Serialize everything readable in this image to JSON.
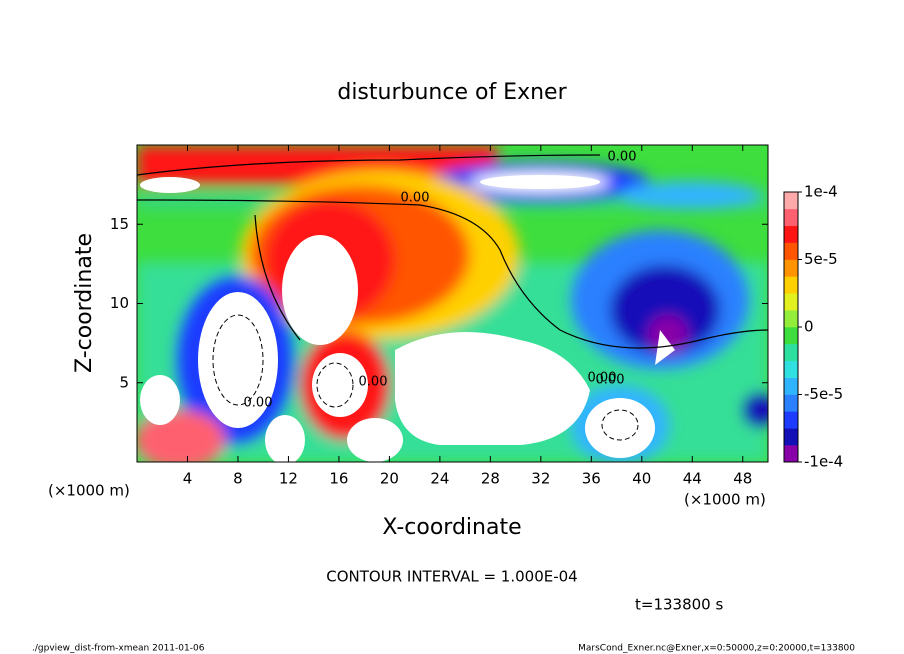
{
  "chart_data": {
    "type": "contour",
    "title": "disturbunce of Exner",
    "xlabel": "X-coordinate",
    "ylabel": "Z-coordinate",
    "x_units": [
      "(×1000 m)",
      "(×1000 m)"
    ],
    "xlim": [
      0,
      50
    ],
    "xticks": [
      4,
      8,
      12,
      16,
      20,
      24,
      28,
      32,
      36,
      40,
      44,
      48
    ],
    "ylim": [
      0,
      20
    ],
    "yticks": [
      5,
      10,
      15
    ],
    "clim": [
      -0.0001,
      0.0001
    ],
    "cticks": [
      {
        "value": 0.0001,
        "label": "1e-4"
      },
      {
        "value": 5e-05,
        "label": "5e-5"
      },
      0,
      {
        "value": -5e-05,
        "label": "-5e-5"
      },
      {
        "value": -0.0001,
        "label": "-1e-4"
      }
    ],
    "colors": [
      "#8800a8",
      "#1410b8",
      "#1d3cff",
      "#2a80ff",
      "#30b4ff",
      "#30e0e0",
      "#2ee0a0",
      "#3ede3e",
      "#92ee3a",
      "#e2f020",
      "#ffd000",
      "#ff9400",
      "#ff5400",
      "#ff1414",
      "#ff6070",
      "#ffaaaa"
    ],
    "contour_labels": [
      "0.00",
      "0.00",
      "0.00",
      "0.00",
      "0.00",
      "0.00"
    ],
    "annotation": "CONTOUR INTERVAL = 1.000E-04",
    "time_label": "t=133800 s",
    "footer_left": "./gpview_dist-from-xmean  2011-01-06",
    "footer_right": "MarsCond_Exner.nc@Exner,x=0:50000,z=0:20000,t=133800"
  }
}
